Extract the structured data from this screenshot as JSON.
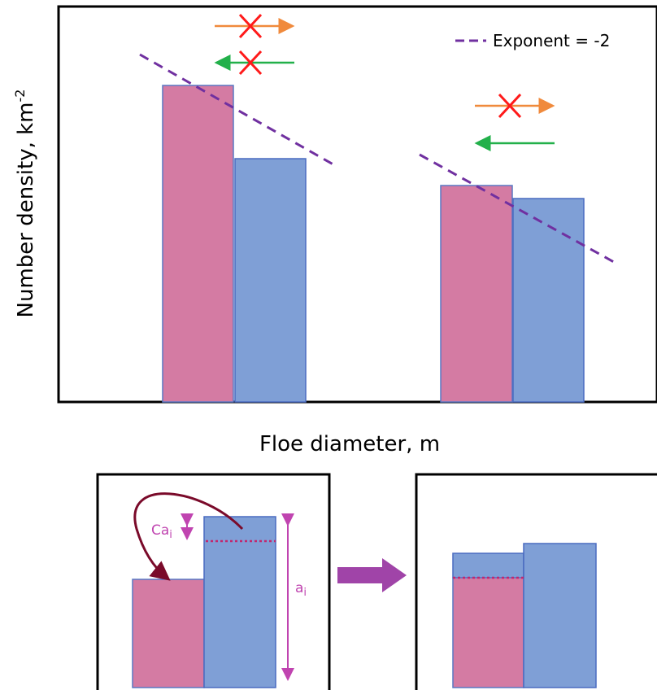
{
  "top_panel": {
    "y_label": "Number density, km",
    "y_label_sup": "-2",
    "x_label": "Floe diameter, m",
    "legend": "Exponent = -2"
  },
  "bottom_left": {
    "ca_label": "Ca",
    "ca_sub": "i",
    "a_label": "a",
    "a_sub": "i"
  }
}
